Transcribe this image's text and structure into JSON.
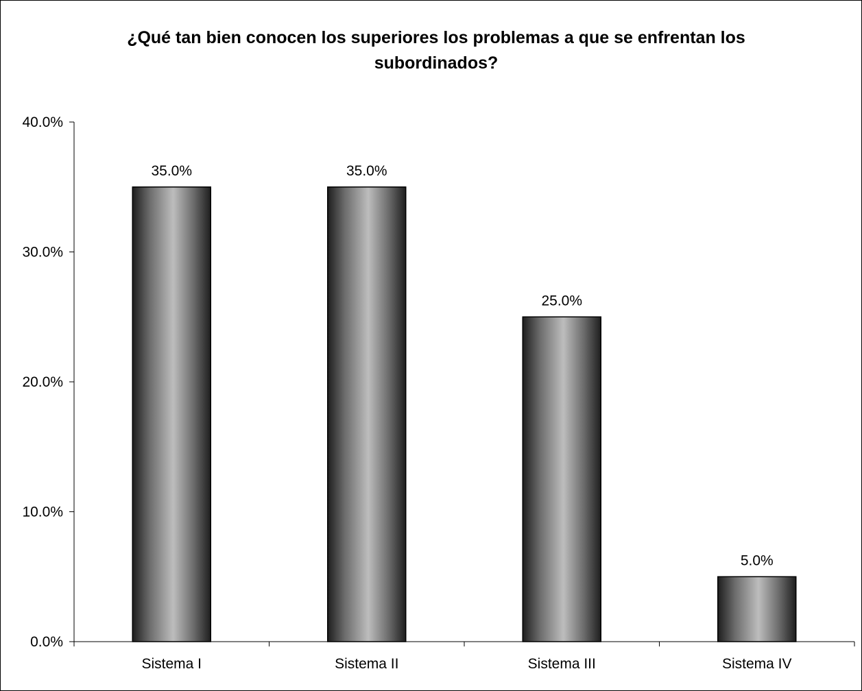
{
  "chart_data": {
    "type": "bar",
    "title": "¿Qué tan bien conocen los superiores los problemas a que se enfrentan los subordinados?",
    "categories": [
      "Sistema I",
      "Sistema II",
      "Sistema III",
      "Sistema IV"
    ],
    "values": [
      35.0,
      35.0,
      25.0,
      5.0
    ],
    "value_labels": [
      "35.0%",
      "35.0%",
      "25.0%",
      "5.0%"
    ],
    "yticks": [
      0,
      10,
      20,
      30,
      40
    ],
    "ytick_labels": [
      "0.0%",
      "10.0%",
      "20.0%",
      "30.0%",
      "40.0%"
    ],
    "ylim": [
      0,
      40
    ],
    "xlabel": "",
    "ylabel": "",
    "grid": false,
    "legend": "none",
    "bar_style": "cylinder-gradient",
    "bar_colors": {
      "edge": "#1e1e1e",
      "mid": "#6c6c6c",
      "highlight": "#bdbdbd",
      "outline": "#000000"
    }
  }
}
